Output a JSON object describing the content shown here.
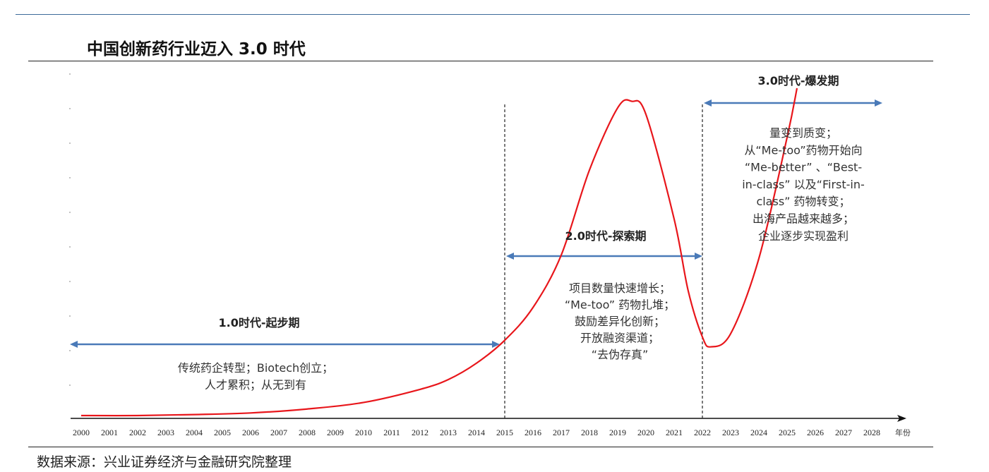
{
  "header": {
    "title": "中国创新药行业迈入 3.0 时代"
  },
  "footer": {
    "source": "数据来源：兴业证券经济与金融研究院整理"
  },
  "chart_data": {
    "type": "line",
    "title": "中国创新药行业迈入 3.0 时代",
    "xlabel": "年份",
    "ylabel": "",
    "x_ticks": [
      "2000",
      "2001",
      "2002",
      "2003",
      "2004",
      "2005",
      "2006",
      "2007",
      "2008",
      "2009",
      "2010",
      "2011",
      "2012",
      "2013",
      "2014",
      "2015",
      "2016",
      "2017",
      "2018",
      "2019",
      "2020",
      "2021",
      "2022",
      "2023",
      "2024",
      "2025",
      "2026",
      "2027",
      "2028"
    ],
    "xlim": [
      2000,
      2028
    ],
    "ylim": [
      0,
      100
    ],
    "curve_color": "#e8161b",
    "arrow_color": "#4a7ab8",
    "series": [
      {
        "x": [
          2000,
          2002,
          2004,
          2006,
          2008,
          2010,
          2012,
          2013,
          2014,
          2015,
          2016,
          2017,
          2018,
          2019,
          2019.5,
          2020,
          2021,
          2021.5,
          2022,
          2022.3,
          2023,
          2024,
          2025,
          2025.35
        ],
        "y": [
          0,
          0,
          0.3,
          0.8,
          2,
          4,
          8,
          11,
          16,
          23,
          33,
          49,
          75,
          94,
          96,
          92,
          60,
          38,
          24,
          21,
          25,
          48,
          85,
          100
        ]
      }
    ],
    "boundaries": [
      2015,
      2022
    ],
    "eras": [
      {
        "name": "1.0时代-起步期",
        "from": 2000,
        "to": 2015,
        "notes": [
          "传统药企转型；Biotech创立；",
          "人才累积；从无到有"
        ]
      },
      {
        "name": "2.0时代-探索期",
        "from": 2015,
        "to": 2022,
        "notes": [
          "项目数量快速增长；",
          "“Me-too” 药物扎堆；",
          "鼓励差异化创新；",
          "开放融资渠道；",
          "“去伪存真”"
        ]
      },
      {
        "name": "3.0时代-爆发期",
        "from": 2022,
        "to": 2028,
        "notes": [
          "量变到质变；",
          "从“Me-too”药物开始向",
          "“Me-better” 、“Best-",
          "in-class” 以及“First-in-",
          "class” 药物转变；",
          "出海产品越来越多；",
          "企业逐步实现盈利"
        ]
      }
    ]
  }
}
